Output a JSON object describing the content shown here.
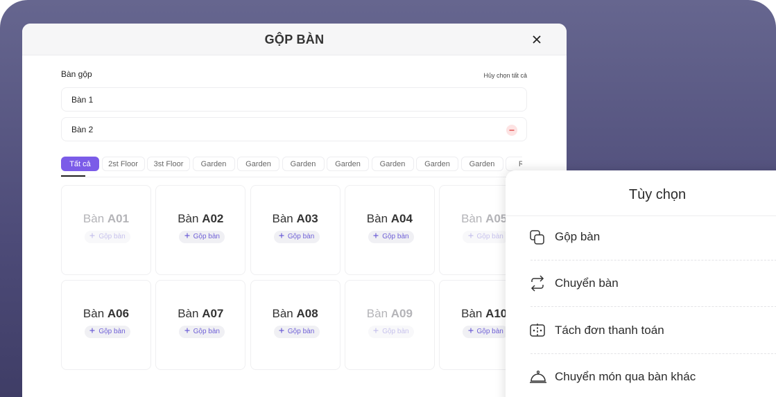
{
  "modal": {
    "title": "GỘP BÀN",
    "section_label": "Bàn gộp",
    "clear_all": "Hủy chọn tất cả",
    "selected": [
      "Bàn 1",
      "Bàn 2"
    ],
    "tabs": [
      "Tất cả",
      "2st Floor",
      "3st Floor",
      "Garden",
      "Garden",
      "Garden",
      "Garden",
      "Garden",
      "Garden",
      "Garden",
      "Roof"
    ],
    "active_tab": 0,
    "tables": [
      {
        "prefix": "Bàn",
        "code": "A01",
        "button": "Gộp bàn",
        "disabled": true
      },
      {
        "prefix": "Bàn",
        "code": "A02",
        "button": "Gộp bàn",
        "disabled": false
      },
      {
        "prefix": "Bàn",
        "code": "A03",
        "button": "Gộp bàn",
        "disabled": false
      },
      {
        "prefix": "Bàn",
        "code": "A04",
        "button": "Gộp bàn",
        "disabled": false
      },
      {
        "prefix": "Bàn",
        "code": "A05",
        "button": "Gộp bàn",
        "disabled": true
      },
      {
        "prefix": "Bàn",
        "code": "A06",
        "button": "Gộp bàn",
        "disabled": false
      },
      {
        "prefix": "Bàn",
        "code": "A07",
        "button": "Gộp bàn",
        "disabled": false
      },
      {
        "prefix": "Bàn",
        "code": "A08",
        "button": "Gộp bàn",
        "disabled": false
      },
      {
        "prefix": "Bàn",
        "code": "A09",
        "button": "Gộp bàn",
        "disabled": true
      },
      {
        "prefix": "Bàn",
        "code": "A10",
        "button": "Gộp bàn",
        "disabled": false
      }
    ]
  },
  "options_panel": {
    "title": "Tùy chọn",
    "items": [
      "Gộp bàn",
      "Chuyển bàn",
      "Tách đơn thanh toán",
      "Chuyển món qua bàn khác"
    ]
  }
}
